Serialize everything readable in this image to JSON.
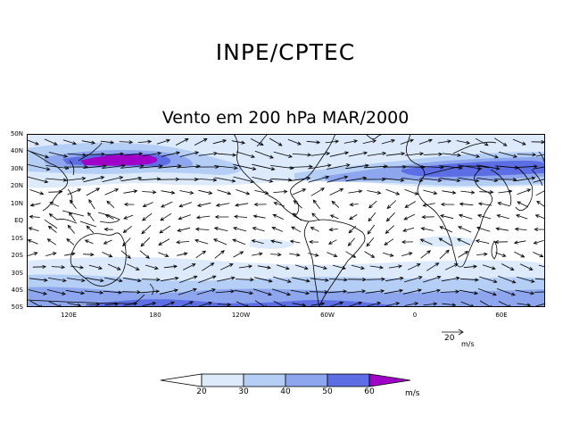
{
  "header": {
    "title": "INPE/CPTEC",
    "subtitle": "Vento em 200 hPa MAR/2000"
  },
  "map": {
    "lat_labels": [
      "50N",
      "40N",
      "30N",
      "20N",
      "10N",
      "EQ",
      "10S",
      "20S",
      "30S",
      "40S",
      "50S"
    ],
    "lon_labels": [
      "120E",
      "180",
      "120W",
      "60W",
      "0",
      "60E"
    ]
  },
  "reference_vector": {
    "value": "20",
    "unit": "m/s"
  },
  "colorbar": {
    "ticks": [
      "20",
      "30",
      "40",
      "50",
      "60"
    ],
    "unit": "m/s",
    "colors": [
      "#ffffff",
      "#dceafc",
      "#b4cef6",
      "#8da6ee",
      "#5d6ee4",
      "#a000c8"
    ]
  }
}
